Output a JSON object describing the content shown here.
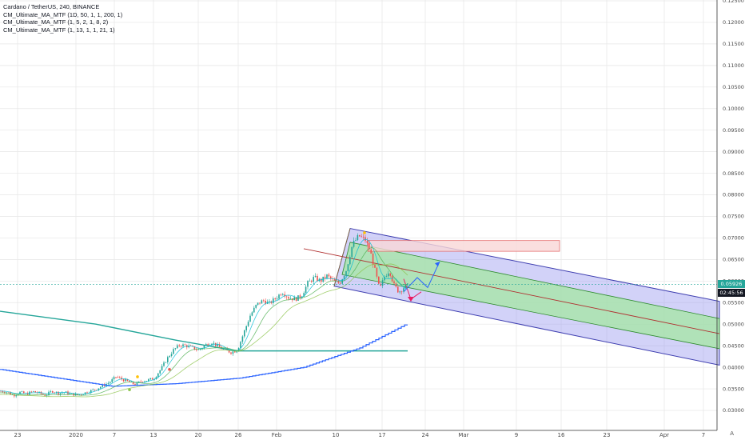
{
  "legend": {
    "title": "Cardano / TetherUS, 240, BINANCE",
    "indicators": [
      "CM_Ultimate_MA_MTF (1D, 50, 1, 1, 200, 1)",
      "CM_Ultimate_MA_MTF (1, 5, 2, 1, 8, 2)",
      "CM_Ultimate_MA_MTF (1, 13, 1, 1, 21, 1)"
    ]
  },
  "price_tag": {
    "price": "0.05926",
    "countdown": "02:45:56",
    "color": "#26a69a",
    "countdown_color": "#131722"
  },
  "auto_label": "A",
  "colors": {
    "up": "#26a69a",
    "down": "#ef5350",
    "grid": "#e6e6e6",
    "channel_outer": "#9c9cf0",
    "channel_inner": "#a8e6a8",
    "channel_edge": "#3f3fb0",
    "median": "#b03030",
    "resistance_box": "#f9d7d7",
    "ma_green": "#26a69a",
    "ma_blue": "#2962ff",
    "arrow_blue": "#2962ff",
    "arrow_red": "#e91e63"
  },
  "chart_data": {
    "type": "candlestick",
    "ylim": [
      0.028,
      0.125
    ],
    "y_ticks": [
      "0.03000",
      "0.03500",
      "0.04000",
      "0.04500",
      "0.05000",
      "0.05500",
      "0.06000",
      "0.06500",
      "0.07000",
      "0.07500",
      "0.08000",
      "0.08500",
      "0.09000",
      "0.09500",
      "0.10000",
      "0.10500",
      "0.11000",
      "0.11500",
      "0.12000",
      "0.12500"
    ],
    "x_ticks": [
      "23",
      "2020",
      "7",
      "13",
      "20",
      "26",
      "Feb",
      "10",
      "17",
      "24",
      "Mar",
      "9",
      "16",
      "23",
      "Apr",
      "7"
    ],
    "price_path": [
      [
        0,
        0.0345
      ],
      [
        8,
        0.0342
      ],
      [
        16,
        0.0335
      ],
      [
        24,
        0.0342
      ],
      [
        32,
        0.0338
      ],
      [
        40,
        0.0344
      ],
      [
        48,
        0.034
      ],
      [
        56,
        0.0335
      ],
      [
        64,
        0.0345
      ],
      [
        72,
        0.034
      ],
      [
        80,
        0.0342
      ],
      [
        88,
        0.0338
      ],
      [
        96,
        0.0336
      ],
      [
        104,
        0.034
      ],
      [
        112,
        0.0345
      ],
      [
        120,
        0.035
      ],
      [
        128,
        0.0358
      ],
      [
        136,
        0.0365
      ],
      [
        144,
        0.0378
      ],
      [
        152,
        0.0372
      ],
      [
        160,
        0.0366
      ],
      [
        168,
        0.036
      ],
      [
        176,
        0.0368
      ],
      [
        184,
        0.037
      ],
      [
        192,
        0.0375
      ],
      [
        200,
        0.0395
      ],
      [
        208,
        0.042
      ],
      [
        216,
        0.044
      ],
      [
        224,
        0.0452
      ],
      [
        232,
        0.045
      ],
      [
        240,
        0.0445
      ],
      [
        248,
        0.044
      ],
      [
        256,
        0.0452
      ],
      [
        264,
        0.0458
      ],
      [
        272,
        0.0448
      ],
      [
        280,
        0.044
      ],
      [
        288,
        0.0435
      ],
      [
        296,
        0.044
      ],
      [
        304,
        0.048
      ],
      [
        312,
        0.052
      ],
      [
        320,
        0.0545
      ],
      [
        328,
        0.0555
      ],
      [
        336,
        0.0548
      ],
      [
        344,
        0.056
      ],
      [
        352,
        0.0575
      ],
      [
        360,
        0.0562
      ],
      [
        368,
        0.0558
      ],
      [
        376,
        0.0565
      ],
      [
        384,
        0.0595
      ],
      [
        392,
        0.0608
      ],
      [
        400,
        0.06
      ],
      [
        408,
        0.0612
      ],
      [
        416,
        0.06
      ],
      [
        424,
        0.0595
      ],
      [
        432,
        0.0625
      ],
      [
        440,
        0.0685
      ],
      [
        448,
        0.0705
      ],
      [
        456,
        0.0695
      ],
      [
        462,
        0.067
      ],
      [
        468,
        0.0625
      ],
      [
        474,
        0.058
      ],
      [
        480,
        0.061
      ],
      [
        486,
        0.0625
      ],
      [
        492,
        0.059
      ],
      [
        498,
        0.0575
      ],
      [
        504,
        0.0585
      ],
      [
        510,
        0.059
      ]
    ],
    "ma_d50": [
      [
        0,
        0.053
      ],
      [
        120,
        0.05
      ],
      [
        220,
        0.0463
      ],
      [
        290,
        0.044
      ],
      [
        300,
        0.0438
      ],
      [
        400,
        0.0438
      ],
      [
        510,
        0.0438
      ]
    ],
    "ma_d200": [
      [
        0,
        0.0395
      ],
      [
        140,
        0.0356
      ],
      [
        220,
        0.0362
      ],
      [
        300,
        0.0375
      ],
      [
        380,
        0.04
      ],
      [
        450,
        0.0445
      ],
      [
        510,
        0.0502
      ]
    ],
    "annotations": {
      "channel_top_start": [
        438,
        0.0722
      ],
      "channel_top_end": [
        900,
        0.0553
      ],
      "channel_bottom_start": [
        418,
        0.0588
      ],
      "channel_bottom_end": [
        900,
        0.0405
      ],
      "inner_top": [
        [
          438,
          0.069
        ],
        [
          900,
          0.0513
        ]
      ],
      "inner_bottom": [
        [
          428,
          0.0615
        ],
        [
          900,
          0.0443
        ]
      ],
      "median_start": [
        380,
        0.0675
      ],
      "median_end": [
        900,
        0.0478
      ],
      "resistance_box": {
        "x0": 460,
        "x1": 700,
        "y0": 0.0669,
        "y1": 0.0694
      },
      "arrow_up_path": [
        [
          505,
          0.0575
        ],
        [
          522,
          0.0608
        ],
        [
          535,
          0.0585
        ],
        [
          550,
          0.0645
        ]
      ],
      "arrow_red_path": [
        [
          505,
          0.0605
        ],
        [
          514,
          0.0558
        ],
        [
          527,
          0.0575
        ]
      ]
    }
  }
}
